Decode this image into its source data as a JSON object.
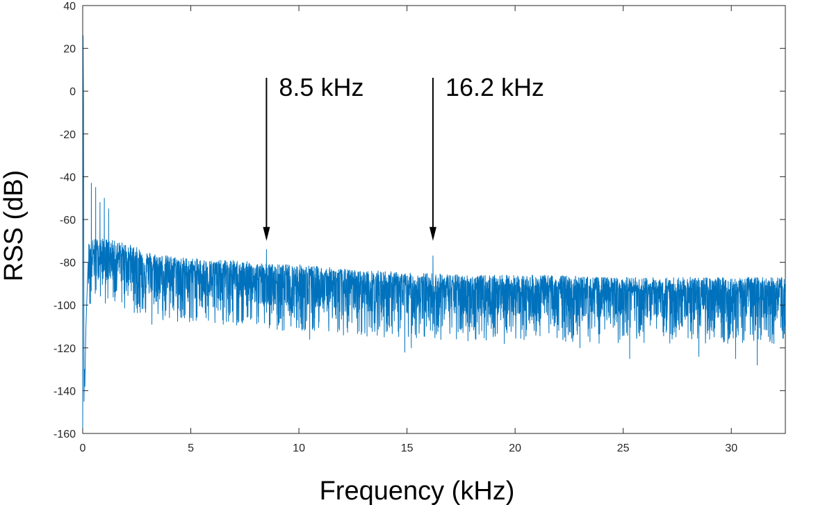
{
  "chart_data": {
    "type": "line",
    "xlabel": "Frequency (kHz)",
    "ylabel": "RSS (dB)",
    "xlim": [
      0,
      32.5
    ],
    "ylim": [
      -160,
      40
    ],
    "xticks": [
      0,
      5,
      10,
      15,
      20,
      25,
      30
    ],
    "yticks": [
      -160,
      -140,
      -120,
      -100,
      -80,
      -60,
      -40,
      -20,
      0,
      20,
      40
    ],
    "grid": false,
    "box": true,
    "line_color": "#0072BD",
    "series": [
      {
        "trend": {
          "x": [
            0.25,
            0.5,
            1,
            1.5,
            2,
            2.5,
            3,
            4,
            5,
            6,
            7,
            8,
            9,
            10,
            11,
            12,
            13,
            14,
            15,
            16,
            18,
            20,
            22,
            24,
            26,
            28,
            30,
            32.5
          ],
          "y": [
            -78,
            -76,
            -76,
            -77,
            -78,
            -80,
            -82,
            -84,
            -85,
            -86,
            -86,
            -87,
            -88,
            -88,
            -89,
            -90,
            -91,
            -91,
            -92,
            -92,
            -93,
            -93,
            -93,
            -94,
            -94,
            -94,
            -94,
            -94
          ]
        },
        "low_frequency_edge": {
          "x": [
            0,
            0.02,
            0.04,
            0.06,
            0.08,
            0.1,
            0.12,
            0.15,
            0.2,
            0.25
          ],
          "y": [
            -160,
            26,
            -5,
            -145,
            -130,
            -138,
            -125,
            -110,
            -95,
            -80
          ]
        },
        "spikes": {
          "x": [
            0.4,
            0.6,
            0.8,
            1.0,
            1.2,
            8.5,
            16.2
          ],
          "y": [
            -43,
            -45,
            -52,
            -50,
            -55,
            -74,
            -77
          ]
        },
        "dips": {
          "x": [
            3.2,
            6.5,
            10.5,
            14.9,
            15.2,
            19.5,
            23,
            25.3,
            28.5,
            30.2,
            31.2
          ],
          "y": [
            -109,
            -109,
            -116,
            -122,
            -120,
            -118,
            -120,
            -125,
            -124,
            -125,
            -128
          ]
        }
      }
    ],
    "annotations": [
      {
        "text": "8.5 kHz",
        "x": 8.5,
        "y": -70
      },
      {
        "text": "16.2 kHz",
        "x": 16.2,
        "y": -70
      }
    ]
  }
}
